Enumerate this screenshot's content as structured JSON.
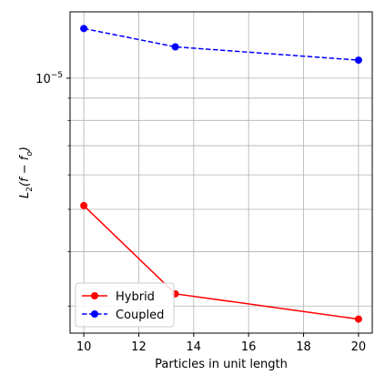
{
  "chart_data": {
    "type": "line",
    "title": "",
    "xlabel": "Particles in unit length",
    "ylabel_parts": [
      "L",
      "2",
      "(f − f",
      "o",
      ")"
    ],
    "xlim": [
      9.5,
      20.5
    ],
    "ylim": [
      2.6e-06,
      1.42e-05
    ],
    "yscale": "log",
    "xticks": [
      10,
      12,
      14,
      16,
      18,
      20
    ],
    "xtick_labels": [
      "10",
      "12",
      "14",
      "16",
      "18",
      "20"
    ],
    "ytick_major": [
      1e-05
    ],
    "ytick_major_labels": [
      [
        "10",
        "−5"
      ]
    ],
    "ytick_minor": [
      3e-06,
      4e-06,
      5e-06,
      6e-06,
      7e-06,
      8e-06,
      9e-06
    ],
    "grid": true,
    "legend_position": "lower-left",
    "series": [
      {
        "name": "Hybrid",
        "color": "#ff0000",
        "line_style": "solid",
        "marker": "circle",
        "x": [
          10,
          13.33,
          20
        ],
        "y": [
          5.1e-06,
          3.2e-06,
          2.8e-06
        ]
      },
      {
        "name": "Coupled",
        "color": "#0000ff",
        "line_style": "dashed",
        "marker": "circle",
        "x": [
          10,
          13.33,
          20
        ],
        "y": [
          1.3e-05,
          1.18e-05,
          1.1e-05
        ]
      }
    ]
  }
}
